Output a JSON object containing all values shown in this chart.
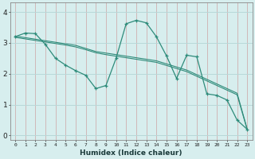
{
  "xlabel": "Humidex (Indice chaleur)",
  "bg_color": "#d7eeee",
  "line_color": "#2e8b7a",
  "grid_color": "#b8d8d8",
  "xlim": [
    -0.5,
    23.5
  ],
  "ylim": [
    -0.15,
    4.3
  ],
  "xticks": [
    0,
    1,
    2,
    3,
    4,
    5,
    6,
    7,
    8,
    9,
    10,
    11,
    12,
    13,
    14,
    15,
    16,
    17,
    18,
    19,
    20,
    21,
    22,
    23
  ],
  "yticks": [
    0,
    1,
    2,
    3,
    4
  ],
  "line1_x": [
    0,
    1,
    2,
    3,
    4,
    5,
    6,
    7,
    8,
    9,
    10,
    11,
    12,
    13,
    14,
    15,
    16,
    17,
    18,
    19,
    20,
    21,
    22,
    23
  ],
  "line1_y": [
    3.2,
    3.32,
    3.3,
    2.95,
    2.5,
    2.28,
    2.1,
    1.95,
    1.52,
    1.62,
    2.5,
    3.62,
    3.73,
    3.65,
    3.2,
    2.58,
    1.85,
    2.6,
    2.55,
    1.35,
    1.3,
    1.15,
    0.5,
    0.2
  ],
  "line2_x": [
    0,
    1,
    2,
    3,
    4,
    5,
    6,
    7,
    8,
    9,
    10,
    11,
    12,
    13,
    14,
    15,
    16,
    17,
    18,
    19,
    20,
    21,
    22,
    23
  ],
  "line2_y": [
    3.18,
    3.13,
    3.08,
    3.03,
    2.98,
    2.93,
    2.87,
    2.78,
    2.68,
    2.62,
    2.57,
    2.52,
    2.47,
    2.42,
    2.37,
    2.27,
    2.17,
    2.07,
    1.92,
    1.77,
    1.62,
    1.47,
    1.32,
    0.19
  ],
  "line3_x": [
    0,
    1,
    2,
    3,
    4,
    5,
    6,
    7,
    8,
    9,
    10,
    11,
    12,
    13,
    14,
    15,
    16,
    17,
    18,
    19,
    20,
    21,
    22,
    23
  ],
  "line3_y": [
    3.22,
    3.17,
    3.12,
    3.07,
    3.02,
    2.97,
    2.92,
    2.82,
    2.72,
    2.67,
    2.62,
    2.57,
    2.52,
    2.47,
    2.42,
    2.32,
    2.22,
    2.12,
    1.97,
    1.82,
    1.67,
    1.52,
    1.37,
    0.21
  ]
}
